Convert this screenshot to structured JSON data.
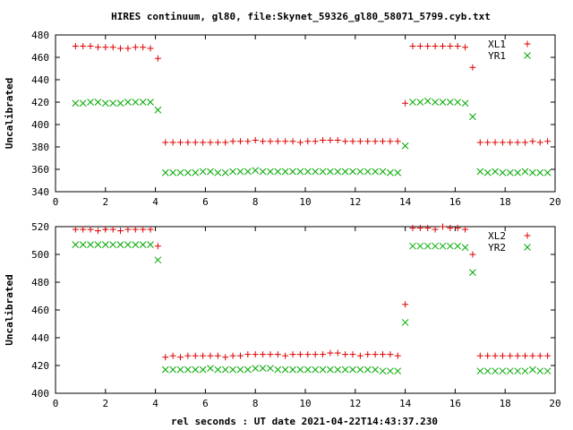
{
  "title": "HIRES continuum, gl80, file:Skynet_59326_gl80_58071_5799.cyb.txt",
  "xlabel": "rel seconds : UT date 2021-04-22T14:43:37.230",
  "colors": {
    "plus": "#dd0000",
    "cross": "#00aa00",
    "axis": "#000000"
  },
  "chart_data": [
    {
      "type": "scatter",
      "ylabel": "Uncalibrated",
      "xlim": [
        0,
        20
      ],
      "ylim": [
        340,
        480
      ],
      "xticks": [
        0,
        2,
        4,
        6,
        8,
        10,
        12,
        14,
        16,
        18,
        20
      ],
      "yticks": [
        340,
        360,
        380,
        400,
        420,
        440,
        460,
        480
      ],
      "legend_position": "top-right",
      "grid": false,
      "series": [
        {
          "name": "XL1",
          "marker": "plus",
          "x": [
            0.8,
            1.1,
            1.4,
            1.7,
            2.0,
            2.3,
            2.6,
            2.9,
            3.2,
            3.5,
            3.8,
            4.1,
            4.4,
            4.7,
            5.0,
            5.3,
            5.6,
            5.9,
            6.2,
            6.5,
            6.8,
            7.1,
            7.4,
            7.7,
            8.0,
            8.3,
            8.6,
            8.9,
            9.2,
            9.5,
            9.8,
            10.1,
            10.4,
            10.7,
            11.0,
            11.3,
            11.6,
            11.9,
            12.2,
            12.5,
            12.8,
            13.1,
            13.4,
            13.7,
            14.0,
            14.3,
            14.6,
            14.9,
            15.2,
            15.5,
            15.8,
            16.1,
            16.4,
            16.7,
            17.0,
            17.3,
            17.6,
            17.9,
            18.2,
            18.5,
            18.8,
            19.1,
            19.4,
            19.7
          ],
          "y": [
            470,
            470,
            470,
            469,
            469,
            469,
            468,
            468,
            469,
            469,
            468,
            459,
            384,
            384,
            384,
            384,
            384,
            384,
            384,
            384,
            384,
            385,
            385,
            385,
            386,
            385,
            385,
            385,
            385,
            385,
            384,
            385,
            385,
            386,
            386,
            386,
            385,
            385,
            385,
            385,
            385,
            385,
            385,
            385,
            419,
            470,
            470,
            470,
            470,
            470,
            470,
            470,
            469,
            451,
            384,
            384,
            384,
            384,
            384,
            384,
            384,
            385,
            384,
            385
          ]
        },
        {
          "name": "YR1",
          "marker": "cross",
          "x": [
            0.8,
            1.1,
            1.4,
            1.7,
            2.0,
            2.3,
            2.6,
            2.9,
            3.2,
            3.5,
            3.8,
            4.1,
            4.4,
            4.7,
            5.0,
            5.3,
            5.6,
            5.9,
            6.2,
            6.5,
            6.8,
            7.1,
            7.4,
            7.7,
            8.0,
            8.3,
            8.6,
            8.9,
            9.2,
            9.5,
            9.8,
            10.1,
            10.4,
            10.7,
            11.0,
            11.3,
            11.6,
            11.9,
            12.2,
            12.5,
            12.8,
            13.1,
            13.4,
            13.7,
            14.0,
            14.3,
            14.6,
            14.9,
            15.2,
            15.5,
            15.8,
            16.1,
            16.4,
            16.7,
            17.0,
            17.3,
            17.6,
            17.9,
            18.2,
            18.5,
            18.8,
            19.1,
            19.4,
            19.7
          ],
          "y": [
            419,
            419,
            420,
            420,
            419,
            419,
            419,
            420,
            420,
            420,
            420,
            413,
            357,
            357,
            357,
            357,
            357,
            358,
            358,
            357,
            357,
            358,
            358,
            358,
            359,
            358,
            358,
            358,
            358,
            358,
            358,
            358,
            358,
            358,
            358,
            358,
            358,
            358,
            358,
            358,
            358,
            358,
            357,
            357,
            381,
            420,
            420,
            421,
            420,
            420,
            420,
            420,
            419,
            407,
            358,
            357,
            358,
            357,
            357,
            357,
            358,
            357,
            357,
            357
          ]
        }
      ]
    },
    {
      "type": "scatter",
      "ylabel": "Uncalibrated",
      "xlim": [
        0,
        20
      ],
      "ylim": [
        400,
        520
      ],
      "xticks": [
        0,
        2,
        4,
        6,
        8,
        10,
        12,
        14,
        16,
        18,
        20
      ],
      "yticks": [
        400,
        420,
        440,
        460,
        480,
        500,
        520
      ],
      "legend_position": "top-right",
      "grid": false,
      "series": [
        {
          "name": "XL2",
          "marker": "plus",
          "x": [
            0.8,
            1.1,
            1.4,
            1.7,
            2.0,
            2.3,
            2.6,
            2.9,
            3.2,
            3.5,
            3.8,
            4.1,
            4.4,
            4.7,
            5.0,
            5.3,
            5.6,
            5.9,
            6.2,
            6.5,
            6.8,
            7.1,
            7.4,
            7.7,
            8.0,
            8.3,
            8.6,
            8.9,
            9.2,
            9.5,
            9.8,
            10.1,
            10.4,
            10.7,
            11.0,
            11.3,
            11.6,
            11.9,
            12.2,
            12.5,
            12.8,
            13.1,
            13.4,
            13.7,
            14.0,
            14.3,
            14.6,
            14.9,
            15.2,
            15.5,
            15.8,
            16.1,
            16.4,
            16.7,
            17.0,
            17.3,
            17.6,
            17.9,
            18.2,
            18.5,
            18.8,
            19.1,
            19.4,
            19.7
          ],
          "y": [
            518,
            518,
            518,
            517,
            518,
            518,
            517,
            518,
            518,
            518,
            518,
            506,
            426,
            427,
            426,
            427,
            427,
            427,
            427,
            427,
            426,
            427,
            427,
            428,
            428,
            428,
            428,
            428,
            427,
            428,
            428,
            428,
            428,
            428,
            429,
            429,
            428,
            428,
            427,
            428,
            428,
            428,
            428,
            427,
            464,
            519,
            519,
            519,
            518,
            520,
            519,
            519,
            518,
            500,
            427,
            427,
            427,
            427,
            427,
            427,
            427,
            427,
            427,
            427
          ]
        },
        {
          "name": "YR2",
          "marker": "cross",
          "x": [
            0.8,
            1.1,
            1.4,
            1.7,
            2.0,
            2.3,
            2.6,
            2.9,
            3.2,
            3.5,
            3.8,
            4.1,
            4.4,
            4.7,
            5.0,
            5.3,
            5.6,
            5.9,
            6.2,
            6.5,
            6.8,
            7.1,
            7.4,
            7.7,
            8.0,
            8.3,
            8.6,
            8.9,
            9.2,
            9.5,
            9.8,
            10.1,
            10.4,
            10.7,
            11.0,
            11.3,
            11.6,
            11.9,
            12.2,
            12.5,
            12.8,
            13.1,
            13.4,
            13.7,
            14.0,
            14.3,
            14.6,
            14.9,
            15.2,
            15.5,
            15.8,
            16.1,
            16.4,
            16.7,
            17.0,
            17.3,
            17.6,
            17.9,
            18.2,
            18.5,
            18.8,
            19.1,
            19.4,
            19.7
          ],
          "y": [
            507,
            507,
            507,
            507,
            507,
            507,
            507,
            507,
            507,
            507,
            507,
            496,
            417,
            417,
            417,
            417,
            417,
            417,
            418,
            417,
            417,
            417,
            417,
            417,
            418,
            418,
            418,
            417,
            417,
            417,
            417,
            417,
            417,
            417,
            417,
            417,
            417,
            417,
            417,
            417,
            417,
            416,
            416,
            416,
            451,
            506,
            506,
            506,
            506,
            506,
            506,
            506,
            505,
            487,
            416,
            416,
            416,
            416,
            416,
            416,
            416,
            417,
            416,
            416
          ]
        }
      ]
    }
  ]
}
